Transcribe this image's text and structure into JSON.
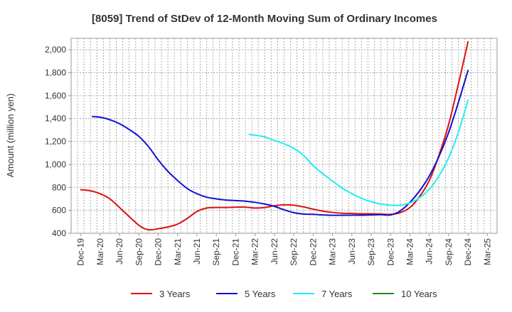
{
  "chart_data": {
    "type": "line",
    "title": "[8059]  Trend of StDev of 12-Month Moving Sum of Ordinary Incomes",
    "xlabel": "",
    "ylabel": "Amount (million yen)",
    "ylim": [
      400,
      2100
    ],
    "yticks": [
      400,
      600,
      800,
      1000,
      1200,
      1400,
      1600,
      1800,
      2000
    ],
    "ytick_labels": [
      "400",
      "600",
      "800",
      "1,000",
      "1,200",
      "1,400",
      "1,600",
      "1,800",
      "2,000"
    ],
    "x_categories": [
      "Dec-19",
      "Mar-20",
      "Jun-20",
      "Sep-20",
      "Dec-20",
      "Mar-21",
      "Jun-21",
      "Sep-21",
      "Dec-21",
      "Mar-22",
      "Jun-22",
      "Sep-22",
      "Dec-22",
      "Mar-23",
      "Jun-23",
      "Sep-23",
      "Dec-23",
      "Mar-24",
      "Jun-24",
      "Sep-24",
      "Dec-24",
      "Mar-25"
    ],
    "grid": true,
    "legend_position": "bottom",
    "series": [
      {
        "name": "3 Years",
        "color": "#dd1111",
        "points": [
          [
            0,
            780
          ],
          [
            0.5,
            770
          ],
          [
            1,
            745
          ],
          [
            1.5,
            700
          ],
          [
            2,
            625
          ],
          [
            2.5,
            545
          ],
          [
            3,
            470
          ],
          [
            3.3,
            440
          ],
          [
            3.6,
            430
          ],
          [
            4,
            440
          ],
          [
            4.5,
            455
          ],
          [
            5,
            480
          ],
          [
            5.5,
            530
          ],
          [
            6,
            590
          ],
          [
            6.5,
            620
          ],
          [
            7,
            625
          ],
          [
            7.5,
            625
          ],
          [
            8,
            628
          ],
          [
            8.5,
            628
          ],
          [
            9,
            620
          ],
          [
            9.5,
            625
          ],
          [
            10,
            640
          ],
          [
            10.5,
            648
          ],
          [
            11,
            645
          ],
          [
            11.5,
            630
          ],
          [
            12,
            610
          ],
          [
            12.5,
            593
          ],
          [
            13,
            582
          ],
          [
            13.5,
            575
          ],
          [
            14,
            573
          ],
          [
            14.5,
            570
          ],
          [
            15,
            570
          ],
          [
            15.5,
            568
          ],
          [
            16,
            565
          ],
          [
            16.5,
            580
          ],
          [
            17,
            625
          ],
          [
            17.5,
            720
          ],
          [
            18,
            860
          ],
          [
            18.5,
            1080
          ],
          [
            19,
            1350
          ],
          [
            19.5,
            1700
          ],
          [
            20,
            2070
          ]
        ]
      },
      {
        "name": "5 Years",
        "color": "#1111cc",
        "points": [
          [
            0.6,
            1418
          ],
          [
            1,
            1412
          ],
          [
            1.5,
            1390
          ],
          [
            2,
            1355
          ],
          [
            2.5,
            1305
          ],
          [
            3,
            1245
          ],
          [
            3.5,
            1155
          ],
          [
            4,
            1040
          ],
          [
            4.5,
            940
          ],
          [
            5,
            860
          ],
          [
            5.5,
            790
          ],
          [
            6,
            745
          ],
          [
            6.5,
            715
          ],
          [
            7,
            700
          ],
          [
            7.5,
            690
          ],
          [
            8,
            685
          ],
          [
            8.5,
            680
          ],
          [
            9,
            670
          ],
          [
            9.5,
            655
          ],
          [
            10,
            635
          ],
          [
            10.5,
            605
          ],
          [
            11,
            580
          ],
          [
            11.5,
            568
          ],
          [
            12,
            565
          ],
          [
            12.5,
            560
          ],
          [
            13,
            557
          ],
          [
            13.5,
            557
          ],
          [
            14,
            558
          ],
          [
            14.5,
            558
          ],
          [
            15,
            560
          ],
          [
            15.5,
            562
          ],
          [
            16,
            560
          ],
          [
            16.5,
            595
          ],
          [
            17,
            670
          ],
          [
            17.5,
            770
          ],
          [
            18,
            900
          ],
          [
            18.5,
            1070
          ],
          [
            19,
            1280
          ],
          [
            19.5,
            1540
          ],
          [
            20,
            1820
          ]
        ]
      },
      {
        "name": "7 Years",
        "color": "#22eeee",
        "points": [
          [
            8.7,
            1262
          ],
          [
            9,
            1255
          ],
          [
            9.5,
            1240
          ],
          [
            10,
            1210
          ],
          [
            10.5,
            1180
          ],
          [
            11,
            1140
          ],
          [
            11.5,
            1080
          ],
          [
            12,
            990
          ],
          [
            12.5,
            920
          ],
          [
            13,
            855
          ],
          [
            13.5,
            795
          ],
          [
            14,
            745
          ],
          [
            14.5,
            705
          ],
          [
            15,
            675
          ],
          [
            15.5,
            655
          ],
          [
            16,
            645
          ],
          [
            16.5,
            645
          ],
          [
            17,
            665
          ],
          [
            17.5,
            710
          ],
          [
            18,
            785
          ],
          [
            18.5,
            900
          ],
          [
            19,
            1060
          ],
          [
            19.5,
            1280
          ],
          [
            20,
            1560
          ]
        ]
      },
      {
        "name": "10 Years",
        "color": "#228822",
        "points": []
      }
    ]
  }
}
